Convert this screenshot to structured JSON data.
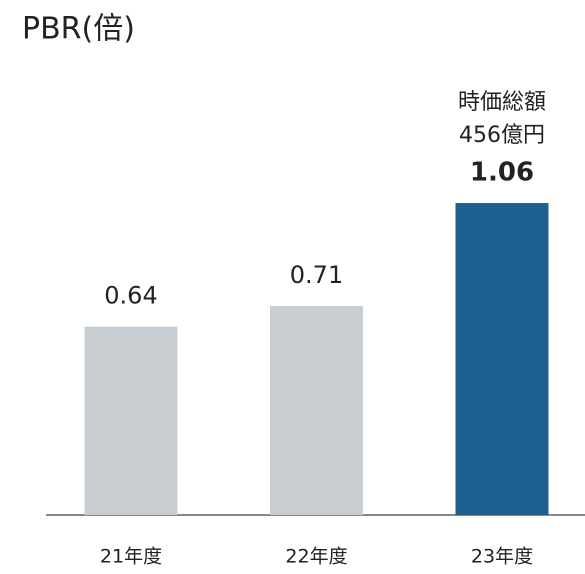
{
  "chart_data": {
    "type": "bar",
    "title": "PBR(倍)",
    "categories": [
      "21年度",
      "22年度",
      "23年度"
    ],
    "values": [
      0.64,
      0.71,
      1.06
    ],
    "colors": [
      "#c8cdd1",
      "#c8cdd1",
      "#1d5f8e"
    ],
    "highlight": 2,
    "annotation": [
      "時価総額",
      "456億円"
    ]
  }
}
